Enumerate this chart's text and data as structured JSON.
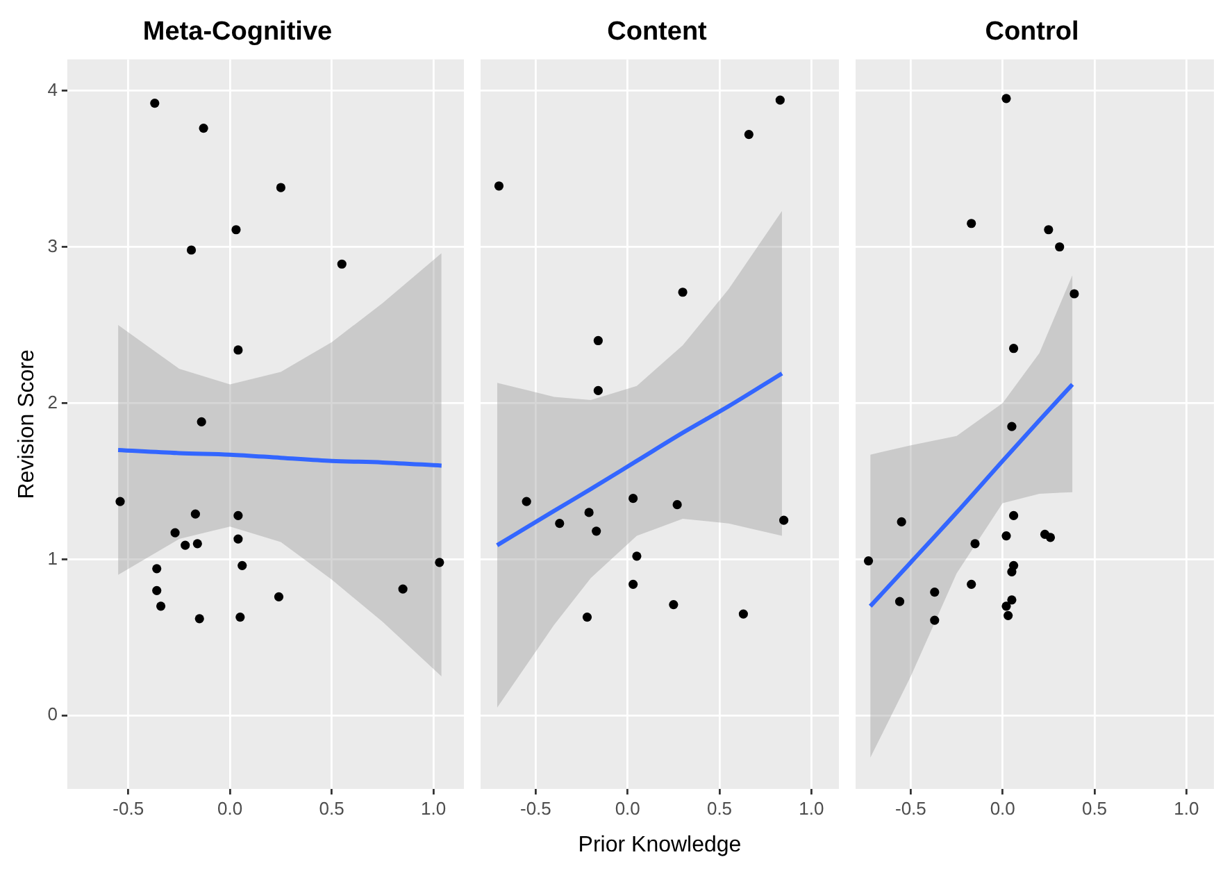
{
  "chart_data": [
    {
      "type": "scatter",
      "title": "Meta-Cognitive",
      "ylabel": "Revision Score",
      "xlim": [
        -0.8,
        1.15
      ],
      "ylim": [
        -0.47,
        4.2
      ],
      "xticks": [
        {
          "value": -0.5,
          "label": "-0.5"
        },
        {
          "value": 0,
          "label": "0.0"
        },
        {
          "value": 0.5,
          "label": "0.5"
        },
        {
          "value": 1,
          "label": "1.0"
        }
      ],
      "yticks": [
        0,
        1,
        2,
        3,
        4
      ],
      "grid": true,
      "legend": false,
      "series": [
        {
          "type": "scatter",
          "marker": "circle",
          "color": "#000000",
          "x": [
            -0.37,
            -0.13,
            0.25,
            0.03,
            -0.19,
            0.55,
            0.04,
            -0.14,
            -0.54,
            -0.17,
            0.04,
            -0.27,
            -0.22,
            -0.16,
            0.04,
            -0.36,
            0.06,
            -0.36,
            -0.34,
            -0.15,
            0.05,
            0.24,
            0.85,
            1.03
          ],
          "values": [
            3.92,
            3.76,
            3.38,
            3.11,
            2.98,
            2.89,
            2.34,
            1.88,
            1.37,
            1.29,
            1.28,
            1.17,
            1.09,
            1.1,
            1.13,
            0.94,
            0.96,
            0.8,
            0.7,
            0.62,
            0.63,
            0.76,
            0.81,
            0.98
          ]
        },
        {
          "type": "line",
          "marker": "none",
          "color": "#3366ff",
          "x": [
            -0.55,
            -0.25,
            0,
            0.25,
            0.5,
            0.75,
            1.04
          ],
          "values": [
            1.7,
            1.68,
            1.67,
            1.65,
            1.63,
            1.62,
            1.6
          ],
          "lower": [
            0.9,
            1.13,
            1.21,
            1.11,
            0.87,
            0.6,
            0.25
          ],
          "upper": [
            2.5,
            2.22,
            2.12,
            2.2,
            2.39,
            2.64,
            2.96
          ]
        }
      ]
    },
    {
      "type": "scatter",
      "title": "Content",
      "xlabel": "Prior Knowledge",
      "xlim": [
        -0.8,
        1.15
      ],
      "ylim": [
        -0.47,
        4.2
      ],
      "xticks": [
        {
          "value": -0.5,
          "label": "-0.5"
        },
        {
          "value": 0,
          "label": "0.0"
        },
        {
          "value": 0.5,
          "label": "0.5"
        },
        {
          "value": 1,
          "label": "1.0"
        }
      ],
      "yticks": [
        0,
        1,
        2,
        3,
        4
      ],
      "tick_labels": "x",
      "grid": true,
      "legend": false,
      "series": [
        {
          "type": "scatter",
          "marker": "circle",
          "color": "#000000",
          "x": [
            0.83,
            0.66,
            -0.7,
            0.3,
            -0.16,
            -0.16,
            -0.55,
            0.03,
            0.27,
            -0.21,
            -0.37,
            -0.17,
            0.85,
            0.05,
            0.03,
            0.25,
            0.63,
            -0.22
          ],
          "values": [
            3.94,
            3.72,
            3.39,
            2.71,
            2.4,
            2.08,
            1.37,
            1.39,
            1.35,
            1.3,
            1.23,
            1.18,
            1.25,
            1.02,
            0.84,
            0.71,
            0.65,
            0.63
          ]
        },
        {
          "type": "line",
          "marker": "none",
          "color": "#3366ff",
          "x": [
            -0.71,
            -0.4,
            -0.2,
            0.05,
            0.3,
            0.55,
            0.84
          ],
          "values": [
            1.09,
            1.31,
            1.45,
            1.63,
            1.81,
            1.98,
            2.19
          ],
          "lower": [
            0.05,
            0.58,
            0.88,
            1.15,
            1.26,
            1.23,
            1.15
          ],
          "upper": [
            2.13,
            2.04,
            2.02,
            2.11,
            2.37,
            2.73,
            3.23
          ]
        }
      ]
    },
    {
      "type": "scatter",
      "title": "Control",
      "xlim": [
        -0.8,
        1.15
      ],
      "ylim": [
        -0.47,
        4.2
      ],
      "xticks": [
        {
          "value": -0.5,
          "label": "-0.5"
        },
        {
          "value": 0,
          "label": "0.0"
        },
        {
          "value": 0.5,
          "label": "0.5"
        },
        {
          "value": 1,
          "label": "1.0"
        }
      ],
      "yticks": [
        0,
        1,
        2,
        3,
        4
      ],
      "tick_labels": "x",
      "grid": true,
      "legend": false,
      "series": [
        {
          "type": "scatter",
          "marker": "circle",
          "color": "#000000",
          "x": [
            0.02,
            -0.17,
            0.25,
            0.31,
            0.39,
            0.06,
            0.05,
            0.06,
            -0.55,
            0.02,
            0.23,
            0.26,
            -0.15,
            -0.73,
            0.06,
            0.05,
            -0.17,
            -0.37,
            -0.56,
            0.05,
            0.02,
            0.03,
            -0.37
          ],
          "values": [
            3.95,
            3.15,
            3.11,
            3.0,
            2.7,
            2.35,
            1.85,
            1.28,
            1.24,
            1.15,
            1.16,
            1.14,
            1.1,
            0.99,
            0.96,
            0.92,
            0.84,
            0.79,
            0.73,
            0.74,
            0.7,
            0.64,
            0.61
          ]
        },
        {
          "type": "line",
          "marker": "none",
          "color": "#3366ff",
          "x": [
            -0.72,
            -0.5,
            -0.25,
            0,
            0.2,
            0.38
          ],
          "values": [
            0.7,
            0.98,
            1.3,
            1.63,
            1.89,
            2.12
          ],
          "lower": [
            -0.27,
            0.25,
            0.91,
            1.36,
            1.42,
            1.43
          ],
          "upper": [
            1.67,
            1.73,
            1.79,
            2.0,
            2.32,
            2.82
          ]
        }
      ]
    }
  ]
}
